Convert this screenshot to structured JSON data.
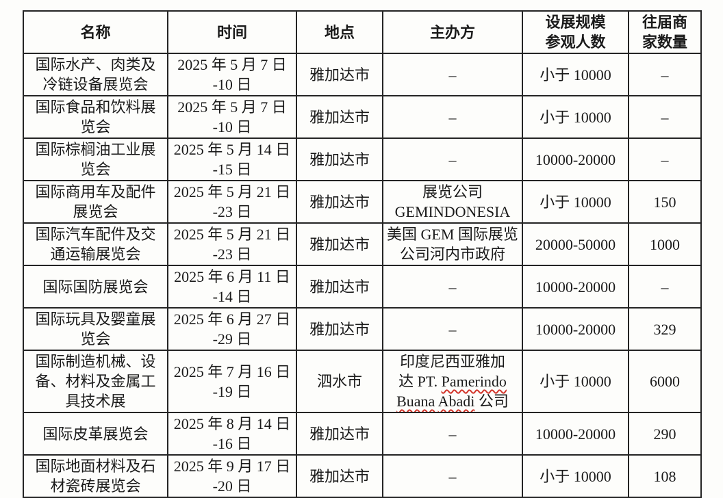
{
  "theme": {
    "background": "#fdfdfb",
    "text_color": "#1a1a1a",
    "border_color": "#242424",
    "squiggle_color": "#d2342a"
  },
  "table": {
    "headers": {
      "name": "名称",
      "time": "时间",
      "location": "地点",
      "organizer": "主办方",
      "scale": "设展规模\n参观人数",
      "merchants": "往届商\n家数量"
    },
    "spellcheck_words": [
      "Pamerindo",
      "Buana",
      "Abadi"
    ],
    "rows": [
      {
        "name": "国际水产、肉类及\n冷链设备展览会",
        "time": "2025 年 5 月 7 日\n-10 日",
        "location": "雅加达市",
        "organizer": "–",
        "scale": "小于 10000",
        "merchants": "–"
      },
      {
        "name": "国际食品和饮料展\n览会",
        "time": "2025 年 5 月 7 日\n-10 日",
        "location": "雅加达市",
        "organizer": "–",
        "scale": "小于 10000",
        "merchants": "–"
      },
      {
        "name": "国际棕榈油工业展\n览会",
        "time": "2025 年 5 月 14 日\n-15 日",
        "location": "雅加达市",
        "organizer": "–",
        "scale": "10000-20000",
        "merchants": "–"
      },
      {
        "name": "国际商用车及配件\n展览会",
        "time": "2025 年 5 月 21 日\n-23 日",
        "location": "雅加达市",
        "organizer": "展览公司\nGEMINDONESIA",
        "scale": "小于 10000",
        "merchants": "150"
      },
      {
        "name": "国际汽车配件及交\n通运输展览会",
        "time": "2025 年 5 月 21 日\n-23 日",
        "location": "雅加达市",
        "organizer": "美国 GEM 国际展览\n公司河内市政府",
        "scale": "20000-50000",
        "merchants": "1000"
      },
      {
        "name": "国际国防展览会",
        "time": "2025 年 6 月 11 日\n-14 日",
        "location": "雅加达市",
        "organizer": "–",
        "scale": "10000-20000",
        "merchants": "–"
      },
      {
        "name": "国际玩具及婴童展\n览会",
        "time": "2025 年 6 月 27 日\n-29 日",
        "location": "雅加达市",
        "organizer": "–",
        "scale": "10000-20000",
        "merchants": "329"
      },
      {
        "name": "国际制造机械、设\n备、材料及金属工\n具技术展",
        "time": "2025 年 7 月 16 日\n-19 日",
        "location": "泗水市",
        "organizer": "印度尼西亚雅加\n达 PT. Pamerindo\nBuana Abadi 公司",
        "scale": "小于 10000",
        "merchants": "6000"
      },
      {
        "name": "国际皮革展览会",
        "time": "2025 年 8 月 14 日\n-16 日",
        "location": "雅加达市",
        "organizer": "–",
        "scale": "10000-20000",
        "merchants": "290"
      },
      {
        "name": "国际地面材料及石\n材瓷砖展览会",
        "time": "2025 年 9 月 17 日\n-20 日",
        "location": "雅加达市",
        "organizer": "–",
        "scale": "小于 10000",
        "merchants": "108"
      }
    ]
  }
}
